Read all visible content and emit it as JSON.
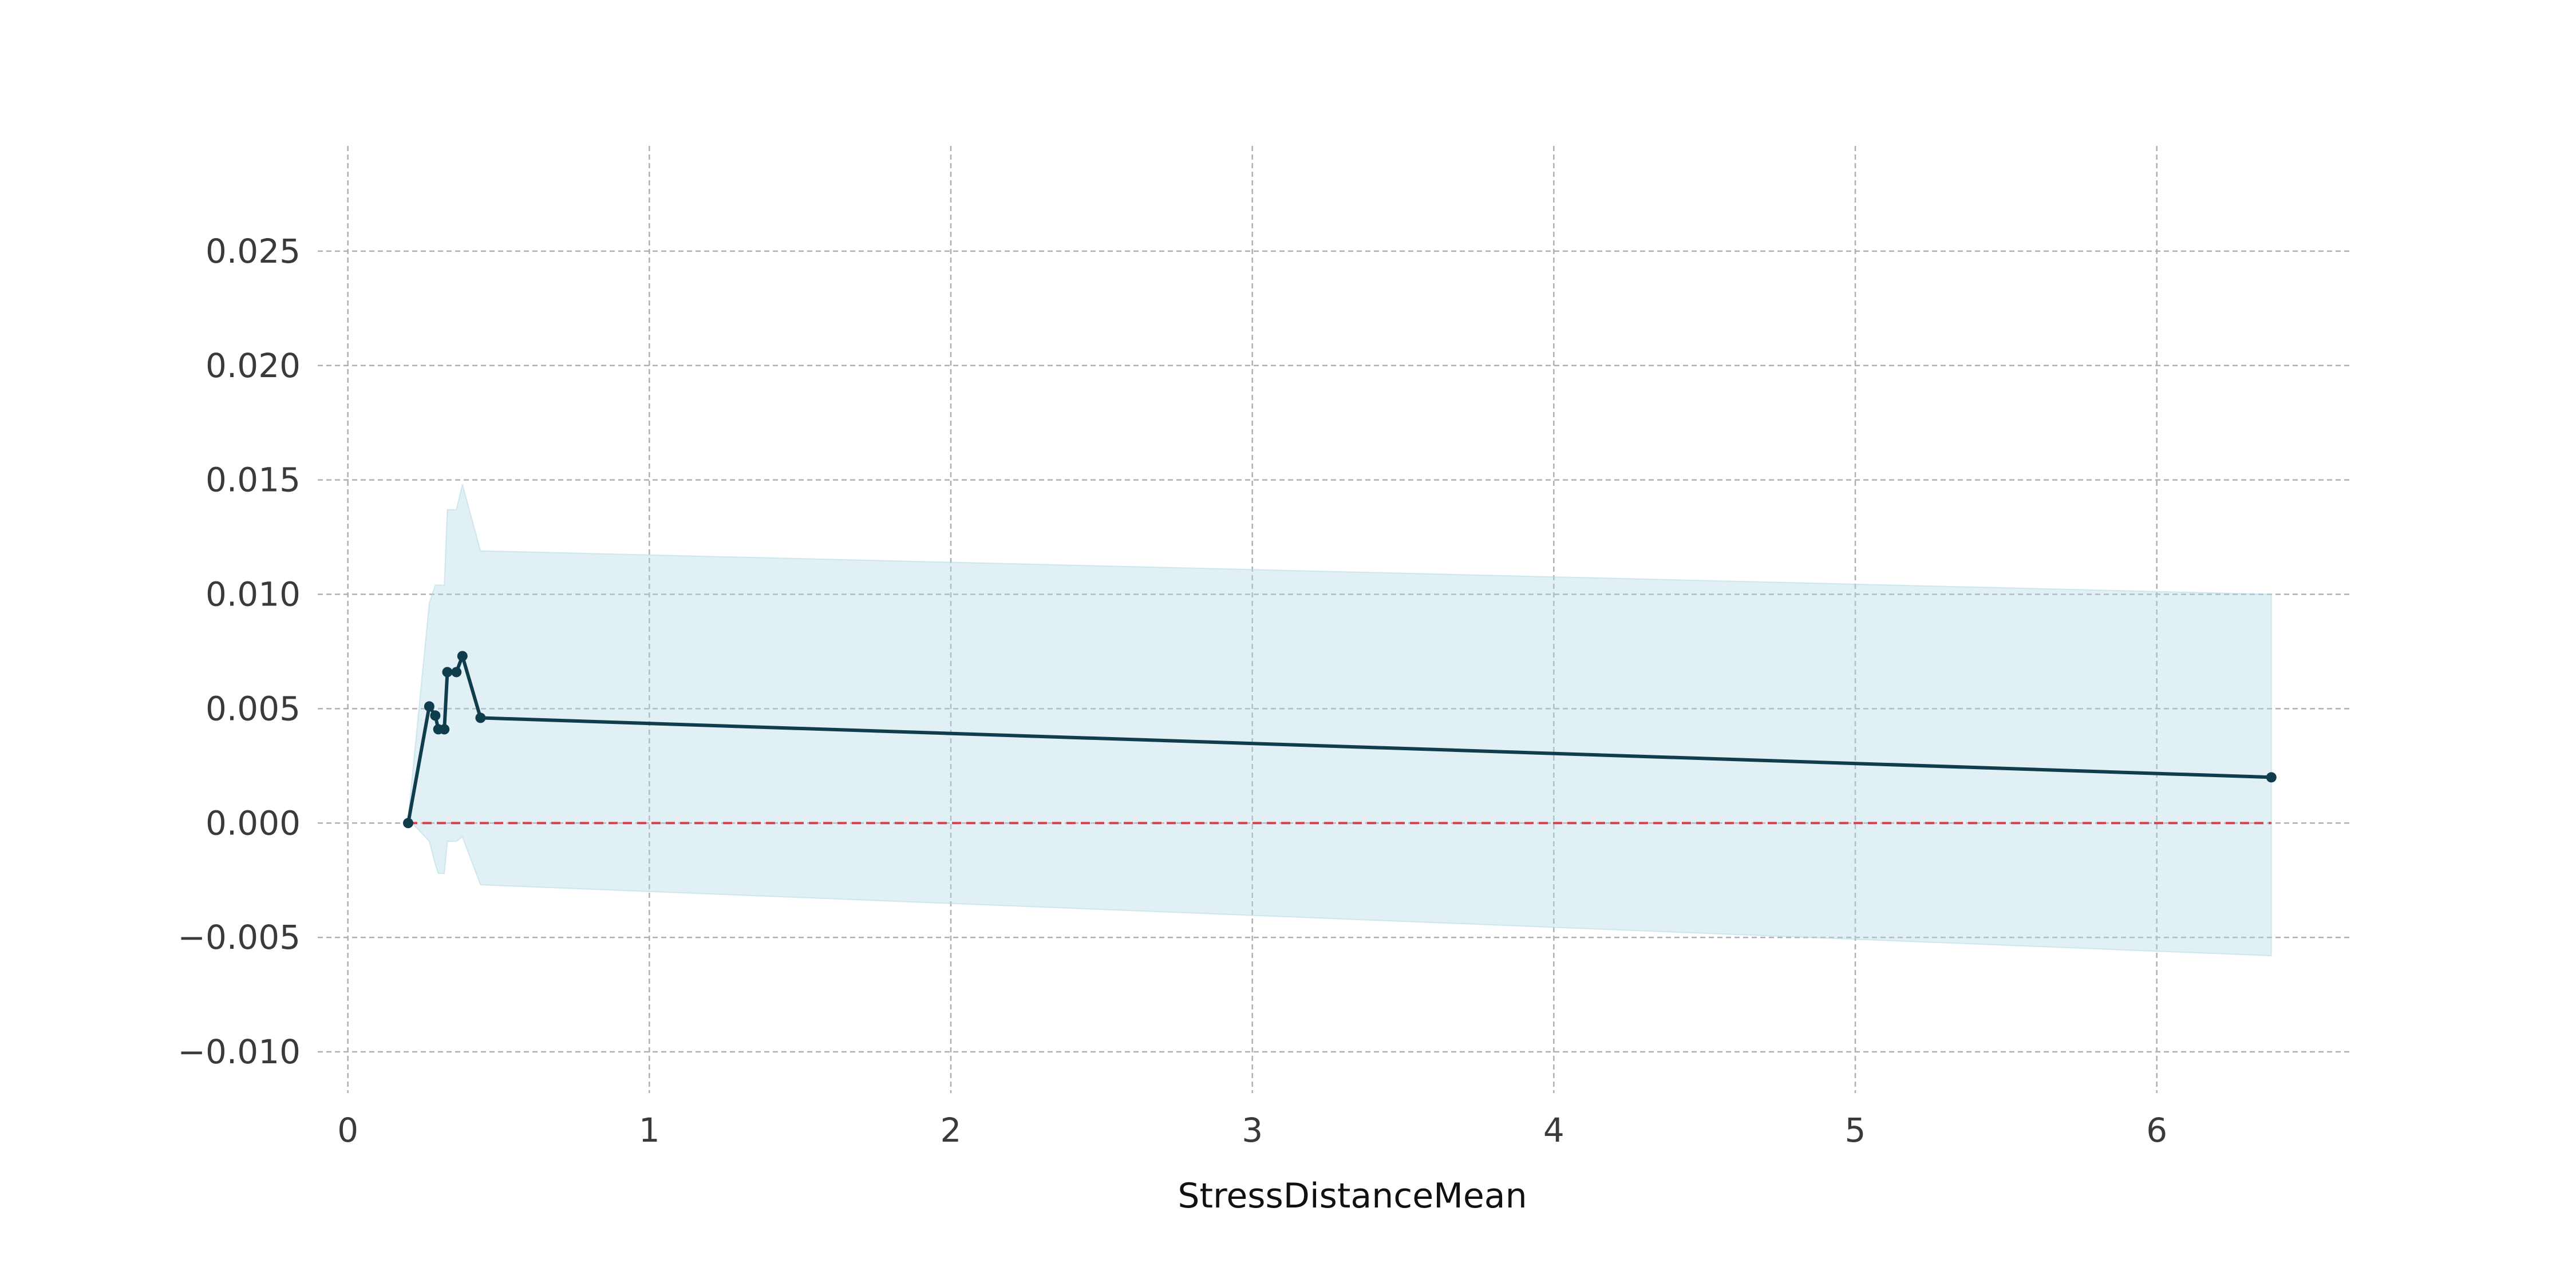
{
  "chart_data": {
    "type": "line",
    "title": "",
    "xlabel": "StressDistanceMean",
    "ylabel": "",
    "xlim": [
      -0.1,
      6.65
    ],
    "ylim": [
      -0.0118,
      0.0296
    ],
    "x_ticks": [
      0,
      1,
      2,
      3,
      4,
      5,
      6
    ],
    "x_tick_labels": [
      "0",
      "1",
      "2",
      "3",
      "4",
      "5",
      "6"
    ],
    "y_ticks": [
      -0.01,
      -0.005,
      0.0,
      0.005,
      0.01,
      0.015,
      0.02,
      0.025
    ],
    "y_tick_labels": [
      "−0.010",
      "−0.005",
      "0.000",
      "0.005",
      "0.010",
      "0.015",
      "0.020",
      "0.025"
    ],
    "grid": true,
    "legend": "none",
    "series": [
      {
        "x": [
          0.2,
          0.27,
          0.29,
          0.3,
          0.32,
          0.33,
          0.36,
          0.38,
          0.44,
          6.38
        ],
        "y": [
          0.0,
          0.0051,
          0.0047,
          0.0041,
          0.0041,
          0.0066,
          0.0066,
          0.0073,
          0.0046,
          0.002
        ],
        "upper": [
          0.0002,
          0.0096,
          0.0104,
          0.0104,
          0.0104,
          0.0137,
          0.0137,
          0.0148,
          0.0119,
          0.01
        ],
        "lower": [
          0.0002,
          -0.0008,
          -0.0018,
          -0.0022,
          -0.0022,
          -0.0008,
          -0.0008,
          -0.0006,
          -0.0027,
          -0.0058
        ],
        "color": "#0f3d4c",
        "band_color": "#add8e6"
      }
    ],
    "reference_line": {
      "y": 0.0,
      "x_from": 0.2,
      "x_to": 6.38,
      "color": "#d9414a",
      "style": "dashed"
    }
  }
}
